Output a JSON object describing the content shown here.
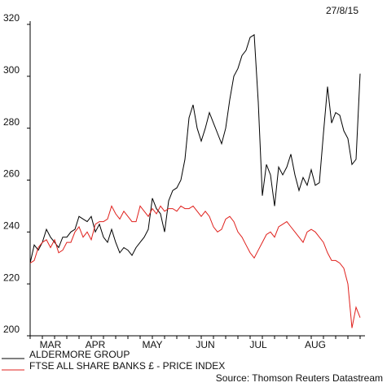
{
  "chart_data": {
    "type": "line",
    "date": "27/8/15",
    "source": "Source: Thomson Reuters Datastream",
    "categories": [
      null,
      null,
      null,
      null,
      null,
      "MAR",
      null,
      null,
      null,
      null,
      null,
      null,
      null,
      null,
      null,
      null,
      "APR",
      null,
      null,
      null,
      null,
      null,
      null,
      null,
      null,
      null,
      null,
      null,
      null,
      null,
      "MAY",
      null,
      null,
      null,
      null,
      null,
      null,
      null,
      null,
      null,
      null,
      null,
      null,
      "JUN",
      null,
      null,
      null,
      null,
      null,
      null,
      null,
      null,
      null,
      null,
      null,
      null,
      "JUL",
      null,
      null,
      null,
      null,
      null,
      null,
      null,
      null,
      null,
      null,
      null,
      null,
      null,
      "AUG",
      null,
      null,
      null,
      null,
      null,
      null,
      null,
      null,
      null,
      null,
      null
    ],
    "series": [
      {
        "name": "ALDERMORE GROUP",
        "color": "#000000",
        "values": [
          228,
          235,
          233,
          236,
          241,
          238,
          236,
          234,
          238,
          238,
          240,
          241,
          246,
          245,
          244,
          246,
          240,
          243,
          238,
          236,
          241,
          236,
          232,
          234,
          233,
          231,
          234,
          236,
          238,
          241,
          253,
          249,
          247,
          240,
          252,
          256,
          257,
          260,
          268,
          284,
          289,
          280,
          275,
          280,
          286,
          282,
          278,
          274,
          280,
          291,
          300,
          303,
          308,
          310,
          315,
          316,
          290,
          254,
          266,
          262,
          250,
          265,
          262,
          265,
          270,
          262,
          256,
          261,
          258,
          264,
          258,
          259,
          278,
          296,
          282,
          286,
          285,
          279,
          276,
          266,
          268,
          301
        ]
      },
      {
        "name": "FTSE ALL SHARE BANKS £ - PRICE INDEX",
        "color": "#e0201c",
        "values": [
          228,
          229,
          234,
          236,
          237,
          234,
          237,
          232,
          233,
          236,
          236,
          240,
          242,
          238,
          240,
          237,
          243,
          244,
          244,
          245,
          250,
          247,
          245,
          248,
          246,
          244,
          244,
          250,
          248,
          246,
          249,
          247,
          250,
          248,
          249,
          249,
          248,
          250,
          249,
          249,
          250,
          248,
          246,
          248,
          246,
          242,
          240,
          241,
          245,
          246,
          244,
          240,
          238,
          235,
          232,
          230,
          233,
          236,
          239,
          240,
          238,
          242,
          243,
          244,
          242,
          240,
          238,
          236,
          240,
          241,
          240,
          238,
          236,
          232,
          229,
          229,
          228,
          226,
          220,
          203,
          211,
          207
        ]
      }
    ],
    "ylim": [
      200,
      320
    ],
    "yticks": [
      200,
      220,
      240,
      260,
      280,
      300,
      320
    ],
    "grid": false
  }
}
